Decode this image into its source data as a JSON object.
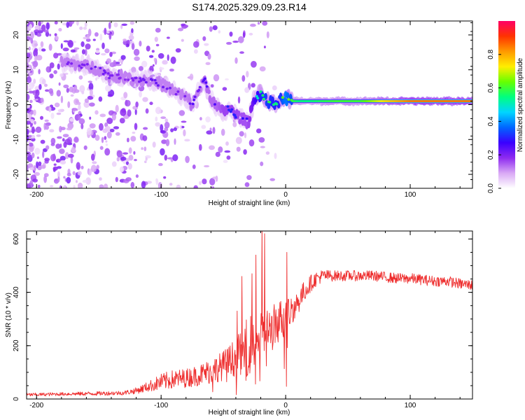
{
  "title": "S174.2025.329.09.23.R14",
  "chart_data": [
    {
      "type": "heatmap",
      "xlabel": "Height of straight line (km)",
      "ylabel": "Frequency (Hz)",
      "xlim": [
        -208,
        150
      ],
      "ylim": [
        -24,
        24
      ],
      "xticks": [
        -200,
        -100,
        0,
        100
      ],
      "yticks": [
        -20,
        -10,
        0,
        10,
        20
      ],
      "xtick_labels": [
        "-200",
        "-100",
        "0",
        "100"
      ],
      "ytick_labels": [
        "-20",
        "-10",
        "0",
        "10",
        "20"
      ],
      "grid": false,
      "colorbar": {
        "label": "Normalized spectral amplitude",
        "range": [
          0,
          1
        ],
        "ticks": [
          0.0,
          0.2,
          0.4,
          0.6,
          0.8
        ],
        "tick_labels": [
          "0.0",
          "0.2",
          "0.4",
          "0.6",
          "0.8"
        ],
        "colors": [
          "#ffffff",
          "#d9a8f5",
          "#8e2bf0",
          "#3a00ff",
          "#0066ff",
          "#00d5ff",
          "#00ff80",
          "#66ff00",
          "#ffee00",
          "#ff9900",
          "#ff3300",
          "#ff0066"
        ]
      },
      "ridge": {
        "x": [
          -175,
          -160,
          -150,
          -140,
          -130,
          -120,
          -110,
          -100,
          -90,
          -80,
          -75,
          -70,
          -65,
          -60,
          -55,
          -50,
          -45,
          -40,
          -35,
          -30,
          -25,
          -20,
          -15,
          -10,
          -5,
          0,
          5,
          10,
          20,
          40,
          60,
          80,
          100,
          120,
          150
        ],
        "freq": [
          12,
          11,
          10,
          8,
          8,
          7,
          7,
          6,
          4,
          2,
          0,
          4,
          7,
          2,
          -1,
          -2,
          -1,
          -3,
          -4,
          -5,
          2,
          3,
          1,
          0,
          1,
          2,
          1,
          1,
          1,
          1,
          1,
          1,
          1,
          1,
          1
        ],
        "amplitude": [
          0.2,
          0.2,
          0.22,
          0.2,
          0.18,
          0.2,
          0.22,
          0.22,
          0.2,
          0.2,
          0.25,
          0.2,
          0.25,
          0.25,
          0.25,
          0.3,
          0.3,
          0.3,
          0.28,
          0.28,
          0.45,
          0.55,
          0.6,
          0.55,
          0.55,
          0.7,
          0.6,
          0.55,
          0.55,
          0.6,
          0.6,
          0.75,
          0.85,
          0.85,
          0.85
        ]
      }
    },
    {
      "type": "line",
      "xlabel": "Height of straight line (km)",
      "ylabel": "SNR (10 * v/v)",
      "xlim": [
        -208,
        150
      ],
      "ylim": [
        0,
        630
      ],
      "xticks": [
        -200,
        -100,
        0,
        100
      ],
      "yticks": [
        0,
        200,
        400,
        600
      ],
      "xtick_labels": [
        "-200",
        "-100",
        "0",
        "100"
      ],
      "ytick_labels": [
        "0",
        "200",
        "400",
        "600"
      ],
      "grid": false,
      "series": [
        {
          "name": "SNR",
          "color": "#ee2c2c",
          "x": [
            -208,
            -180,
            -150,
            -130,
            -120,
            -110,
            -100,
            -90,
            -80,
            -70,
            -60,
            -50,
            -40,
            -35,
            -30,
            -25,
            -20,
            -18,
            -15,
            -10,
            -5,
            0,
            5,
            10,
            15,
            20,
            25,
            30,
            40,
            50,
            60,
            70,
            80,
            90,
            100,
            110,
            120,
            130,
            140,
            150
          ],
          "y": [
            15,
            18,
            20,
            22,
            30,
            45,
            60,
            70,
            75,
            85,
            100,
            120,
            150,
            170,
            190,
            210,
            240,
            200,
            240,
            260,
            290,
            300,
            330,
            360,
            400,
            430,
            450,
            460,
            460,
            460,
            460,
            460,
            455,
            450,
            450,
            445,
            440,
            440,
            430,
            425
          ],
          "noise": [
            8,
            8,
            10,
            10,
            15,
            25,
            40,
            45,
            45,
            50,
            60,
            70,
            90,
            110,
            140,
            150,
            130,
            120,
            120,
            110,
            100,
            90,
            70,
            60,
            50,
            40,
            35,
            30,
            25,
            25,
            25,
            25,
            25,
            25,
            25,
            25,
            25,
            25,
            25,
            25
          ],
          "spikes": [
            {
              "x": -39,
              "y": 330
            },
            {
              "x": -35,
              "y": 460
            },
            {
              "x": -27,
              "y": 470
            },
            {
              "x": -24,
              "y": 540
            },
            {
              "x": -19,
              "y": 660
            },
            {
              "x": -17,
              "y": 620
            },
            {
              "x": 1,
              "y": 550
            }
          ]
        }
      ]
    }
  ]
}
